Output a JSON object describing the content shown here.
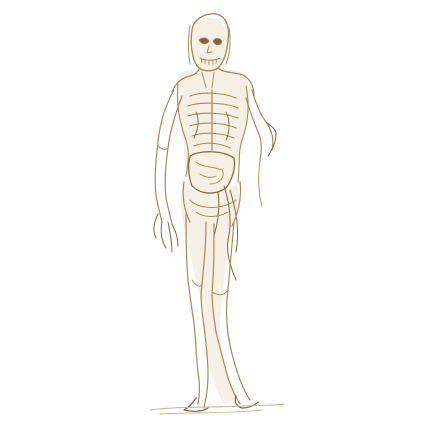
{
  "image": {
    "subject": "zombie-figure-sketch",
    "colors": {
      "background": "#ffffff",
      "ink": "#a88a5a",
      "ink_dark": "#7f6640",
      "wash": "#e9dcc4"
    }
  }
}
